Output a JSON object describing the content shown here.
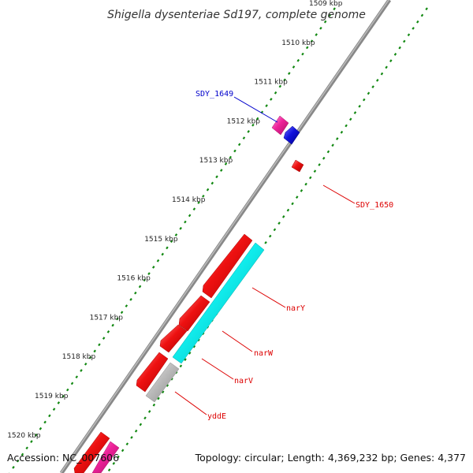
{
  "title": "Shigella dysenteriae Sd197, complete genome",
  "footer": {
    "accession": "Accession: NC_007606",
    "summary": "Topology: circular; Length: 4,369,232 bp; Genes: 4,377"
  },
  "ruler": {
    "ticks": [
      "1509 kbp",
      "1510 kbp",
      "1511 kbp",
      "1512 kbp",
      "1513 kbp",
      "1514 kbp",
      "1515 kbp",
      "1516 kbp",
      "1517 kbp",
      "1518 kbp",
      "1519 kbp",
      "1520 kbp"
    ]
  },
  "colors": {
    "red": "#ee1111",
    "blue": "#1111dd",
    "cyan": "#11eeee",
    "pink": "#ee2299",
    "grey": "#bbbbbb",
    "dots": "#118811"
  },
  "genes": [
    {
      "name": "SDY_1649",
      "color": "blue",
      "label_color": "#0000cc"
    },
    {
      "name": "SDY_1650",
      "color": "red",
      "label_color": "#dd0000"
    },
    {
      "name": "narY",
      "color": "cyan",
      "label_color": "#dd0000"
    },
    {
      "name": "narW",
      "color": "cyan",
      "label_color": "#dd0000"
    },
    {
      "name": "narV",
      "color": "cyan",
      "label_color": "#dd0000"
    },
    {
      "name": "yddE",
      "color": "grey",
      "label_color": "#dd0000"
    }
  ]
}
